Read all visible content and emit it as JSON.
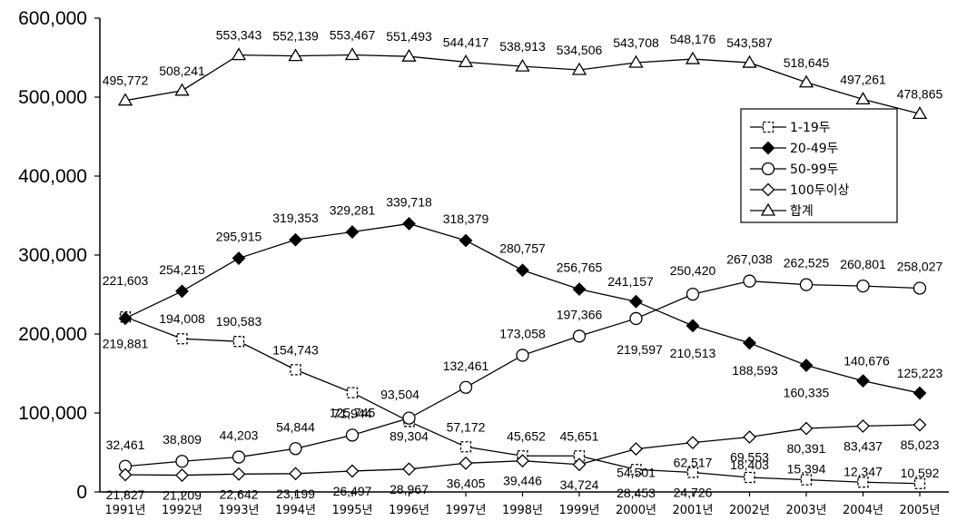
{
  "chart_data": {
    "type": "line",
    "title": "",
    "xlabel": "",
    "ylabel": "",
    "ylim": [
      0,
      600000
    ],
    "yticks": [
      "0",
      "100,000",
      "200,000",
      "300,000",
      "400,000",
      "500,000",
      "600,000"
    ],
    "x": [
      "1991년",
      "1992년",
      "1993년",
      "1994년",
      "1995년",
      "1996년",
      "1997년",
      "1998년",
      "1999년",
      "2000년",
      "2001년",
      "2002년",
      "2003년",
      "2004년",
      "2005년"
    ],
    "grid": false,
    "legend_position": "right",
    "series": [
      {
        "name": "1-19두",
        "marker": "square",
        "color": "#000000",
        "values": [
          221603,
          194008,
          190583,
          154743,
          125745,
          89304,
          57172,
          45652,
          45651,
          28453,
          24726,
          18403,
          15394,
          12347,
          10592
        ],
        "labels": [
          "221,603",
          "194,008",
          "190,583",
          "154,743",
          "125,745",
          "89,304",
          "57,172",
          "45,652",
          "45,651",
          "28,453",
          "24,726",
          "18,403",
          "15,394",
          "12,347",
          "10,592"
        ]
      },
      {
        "name": "20-49두",
        "marker": "diamond-filled",
        "color": "#000000",
        "values": [
          219881,
          254215,
          295915,
          319353,
          329281,
          339718,
          318379,
          280757,
          256765,
          241157,
          210513,
          188593,
          160335,
          140676,
          125223
        ],
        "labels": [
          "219,881",
          "254,215",
          "295,915",
          "319,353",
          "329,281",
          "339,718",
          "318,379",
          "280,757",
          "256,765",
          "241,157",
          "210,513",
          "188,593",
          "160,335",
          "140,676",
          "125,223"
        ]
      },
      {
        "name": "50-99두",
        "marker": "circle",
        "color": "#000000",
        "values": [
          32461,
          38809,
          44203,
          54844,
          71944,
          93504,
          132461,
          173058,
          197366,
          219597,
          250420,
          267038,
          262525,
          260801,
          258027
        ],
        "labels": [
          "32,461",
          "38,809",
          "44,203",
          "54,844",
          "71,944",
          "93,504",
          "132,461",
          "173,058",
          "197,366",
          "219,597",
          "250,420",
          "267,038",
          "262,525",
          "260,801",
          "258,027"
        ]
      },
      {
        "name": "100두이상",
        "marker": "diamond",
        "color": "#000000",
        "values": [
          21827,
          21209,
          22642,
          23199,
          26497,
          28967,
          36405,
          39446,
          34724,
          54501,
          62517,
          69553,
          80391,
          83437,
          85023
        ],
        "labels": [
          "21,827",
          "21,209",
          "22,642",
          "23,199",
          "26,497",
          "28,967",
          "36,405",
          "39,446",
          "34,724",
          "54,501",
          "62,517",
          "69,553",
          "80,391",
          "83,437",
          "85,023"
        ]
      },
      {
        "name": "합계",
        "marker": "triangle",
        "color": "#000000",
        "values": [
          495772,
          508241,
          553343,
          552139,
          553467,
          551493,
          544417,
          538913,
          534506,
          543708,
          548176,
          543587,
          518645,
          497261,
          478865
        ],
        "labels": [
          "495,772",
          "508,241",
          "553,343",
          "552,139",
          "553,467",
          "551,493",
          "544,417",
          "538,913",
          "534,506",
          "543,708",
          "548,176",
          "543,587",
          "518,645",
          "497,261",
          "478,865"
        ]
      }
    ]
  }
}
